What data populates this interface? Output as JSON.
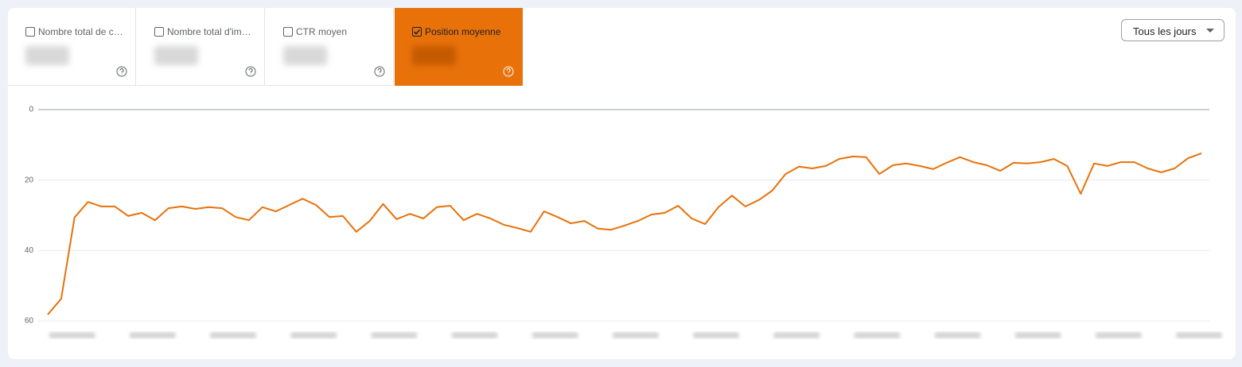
{
  "tabs": [
    {
      "label": "Nombre total de c…",
      "checked": false
    },
    {
      "label": "Nombre total d'im…",
      "checked": false
    },
    {
      "label": "CTR moyen",
      "checked": false
    },
    {
      "label": "Position moyenne",
      "checked": true
    }
  ],
  "dropdown": {
    "label": "Tous les jours"
  },
  "chart_data": {
    "type": "line",
    "color": "#e8710a",
    "y_reversed": true,
    "grid": true,
    "ylim": [
      0,
      60
    ],
    "yticks": [
      0,
      20,
      40,
      60
    ],
    "categories": [
      null,
      null,
      null,
      null,
      null,
      null,
      null,
      null,
      null,
      null,
      null,
      null,
      null,
      null,
      null,
      null,
      null,
      null,
      null,
      null,
      null,
      null,
      null,
      null,
      null,
      null,
      null,
      null,
      null,
      null,
      null,
      null,
      null,
      null,
      null,
      null,
      null,
      null,
      null,
      null,
      null,
      null,
      null,
      null,
      null,
      null,
      null,
      null,
      null,
      null,
      null,
      null,
      null,
      null,
      null,
      null,
      null,
      null,
      null,
      null,
      null,
      null,
      null,
      null,
      null,
      null,
      null,
      null,
      null,
      null,
      null,
      null,
      null,
      null,
      null,
      null,
      null,
      null,
      null,
      null,
      null,
      null,
      null,
      null,
      null,
      null,
      null
    ],
    "values": [
      58.2,
      53.7,
      30.6,
      26.2,
      27.5,
      27.5,
      30.2,
      29.3,
      31.4,
      28,
      27.5,
      28.2,
      27.7,
      28,
      30.5,
      31.4,
      27.7,
      28.9,
      27.1,
      25.3,
      27.1,
      30.5,
      30.2,
      34.7,
      31.6,
      26.8,
      31.1,
      29.6,
      30.9,
      27.7,
      27.3,
      31.4,
      29.6,
      30.9,
      32.7,
      33.6,
      34.7,
      28.9,
      30.5,
      32.3,
      31.6,
      33.8,
      34.1,
      32.9,
      31.6,
      29.8,
      29.3,
      27.3,
      30.9,
      32.5,
      27.7,
      24.4,
      27.5,
      25.7,
      23,
      18.3,
      16.2,
      16.7,
      16,
      14,
      13.3,
      13.5,
      18.3,
      15.8,
      15.3,
      16,
      16.9,
      15.1,
      13.5,
      14.9,
      15.8,
      17.4,
      15.1,
      15.3,
      14.9,
      14,
      16,
      23.9,
      15.3,
      16,
      14.9,
      14.9,
      16.7,
      17.8,
      16.7,
      13.8,
      12.4
    ]
  }
}
